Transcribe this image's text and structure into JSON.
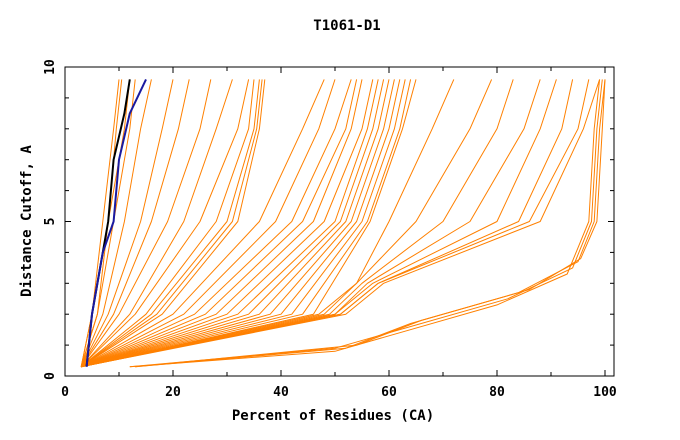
{
  "chart_data": {
    "type": "line",
    "title": "T1061-D1",
    "xlabel": "Percent of Residues (CA)",
    "ylabel": "Distance Cutoff, A",
    "xlim": [
      0,
      100
    ],
    "ylim": [
      0,
      10
    ],
    "xticks": [
      "0",
      "20",
      "40",
      "60",
      "80",
      "100"
    ],
    "yticks": [
      "0",
      "5",
      "10"
    ],
    "grid": false,
    "legend": "none",
    "colors": {
      "models": "#ff8000",
      "highlight_black": "#000000",
      "highlight_blue": "#1a1aa0"
    },
    "series": [
      {
        "color": "models",
        "points": [
          [
            3,
            0.3
          ],
          [
            5,
            2
          ],
          [
            7,
            5
          ],
          [
            9,
            8
          ],
          [
            10,
            9.6
          ]
        ]
      },
      {
        "color": "models",
        "points": [
          [
            3,
            0.3
          ],
          [
            6,
            2
          ],
          [
            8,
            5
          ],
          [
            9.5,
            8
          ],
          [
            10.5,
            9.6
          ]
        ]
      },
      {
        "color": "models",
        "points": [
          [
            3,
            0.3
          ],
          [
            5,
            2
          ],
          [
            8,
            5
          ],
          [
            11,
            8
          ],
          [
            12,
            9.6
          ]
        ]
      },
      {
        "color": "models",
        "points": [
          [
            3,
            0.3
          ],
          [
            6,
            2
          ],
          [
            9,
            5
          ],
          [
            12,
            8
          ],
          [
            13,
            9.6
          ]
        ]
      },
      {
        "color": "models",
        "points": [
          [
            3,
            0.3
          ],
          [
            7,
            2
          ],
          [
            11,
            5
          ],
          [
            14,
            8
          ],
          [
            16,
            9.6
          ]
        ]
      },
      {
        "color": "models",
        "points": [
          [
            3,
            0.3
          ],
          [
            8,
            2
          ],
          [
            14,
            5
          ],
          [
            18,
            8
          ],
          [
            20,
            9.6
          ]
        ]
      },
      {
        "color": "models",
        "points": [
          [
            3,
            0.3
          ],
          [
            9,
            2
          ],
          [
            16,
            5
          ],
          [
            21,
            8
          ],
          [
            23,
            9.6
          ]
        ]
      },
      {
        "color": "models",
        "points": [
          [
            3,
            0.3
          ],
          [
            10,
            2
          ],
          [
            19,
            5
          ],
          [
            25,
            8
          ],
          [
            27,
            9.6
          ]
        ]
      },
      {
        "color": "models",
        "points": [
          [
            3,
            0.3
          ],
          [
            12,
            2
          ],
          [
            22,
            5
          ],
          [
            28,
            8
          ],
          [
            31,
            9.6
          ]
        ]
      },
      {
        "color": "models",
        "points": [
          [
            3,
            0.3
          ],
          [
            13,
            2
          ],
          [
            25,
            5
          ],
          [
            32,
            8
          ],
          [
            34,
            9.6
          ]
        ]
      },
      {
        "color": "models",
        "points": [
          [
            3,
            0.3
          ],
          [
            15,
            2
          ],
          [
            28,
            5
          ],
          [
            34,
            8
          ],
          [
            35,
            9.6
          ]
        ]
      },
      {
        "color": "models",
        "points": [
          [
            3,
            0.3
          ],
          [
            16,
            2
          ],
          [
            30,
            5
          ],
          [
            35,
            8
          ],
          [
            36,
            9.6
          ]
        ]
      },
      {
        "color": "models",
        "points": [
          [
            3,
            0.3
          ],
          [
            17,
            2
          ],
          [
            31,
            5
          ],
          [
            35.5,
            8
          ],
          [
            36.5,
            9.6
          ]
        ]
      },
      {
        "color": "models",
        "points": [
          [
            3,
            0.3
          ],
          [
            18,
            2
          ],
          [
            32,
            5
          ],
          [
            36,
            8
          ],
          [
            37,
            9.6
          ]
        ]
      },
      {
        "color": "models",
        "points": [
          [
            3,
            0.3
          ],
          [
            20,
            2
          ],
          [
            36,
            5
          ],
          [
            44,
            8
          ],
          [
            48,
            9.6
          ]
        ]
      },
      {
        "color": "models",
        "points": [
          [
            3,
            0.3
          ],
          [
            22,
            2
          ],
          [
            39,
            5
          ],
          [
            47,
            8
          ],
          [
            50,
            9.6
          ]
        ]
      },
      {
        "color": "models",
        "points": [
          [
            3,
            0.3
          ],
          [
            24,
            2
          ],
          [
            42,
            5
          ],
          [
            50,
            8
          ],
          [
            53,
            9.6
          ]
        ]
      },
      {
        "color": "models",
        "points": [
          [
            3,
            0.3
          ],
          [
            26,
            2
          ],
          [
            44,
            5
          ],
          [
            52,
            8
          ],
          [
            54,
            9.6
          ]
        ]
      },
      {
        "color": "models",
        "points": [
          [
            3,
            0.3
          ],
          [
            28,
            2
          ],
          [
            46,
            5
          ],
          [
            53,
            8
          ],
          [
            55,
            9.6
          ]
        ]
      },
      {
        "color": "models",
        "points": [
          [
            3,
            0.3
          ],
          [
            30,
            2
          ],
          [
            48,
            5
          ],
          [
            55,
            8
          ],
          [
            57,
            9.6
          ]
        ]
      },
      {
        "color": "models",
        "points": [
          [
            3,
            0.3
          ],
          [
            32,
            2
          ],
          [
            50,
            5
          ],
          [
            56,
            8
          ],
          [
            58,
            9.6
          ]
        ]
      },
      {
        "color": "models",
        "points": [
          [
            3,
            0.3
          ],
          [
            34,
            2
          ],
          [
            51,
            5
          ],
          [
            57,
            8
          ],
          [
            59,
            9.6
          ]
        ]
      },
      {
        "color": "models",
        "points": [
          [
            3,
            0.3
          ],
          [
            36,
            2
          ],
          [
            52,
            5
          ],
          [
            58,
            8
          ],
          [
            60,
            9.6
          ]
        ]
      },
      {
        "color": "models",
        "points": [
          [
            3,
            0.3
          ],
          [
            38,
            2
          ],
          [
            53,
            5
          ],
          [
            59,
            8
          ],
          [
            61,
            9.6
          ]
        ]
      },
      {
        "color": "models",
        "points": [
          [
            3,
            0.3
          ],
          [
            40,
            2
          ],
          [
            54,
            5
          ],
          [
            60,
            8
          ],
          [
            62,
            9.6
          ]
        ]
      },
      {
        "color": "models",
        "points": [
          [
            3,
            0.3
          ],
          [
            42,
            2
          ],
          [
            55,
            5
          ],
          [
            61,
            8
          ],
          [
            63,
            9.6
          ]
        ]
      },
      {
        "color": "models",
        "points": [
          [
            3,
            0.3
          ],
          [
            44,
            2
          ],
          [
            56,
            5
          ],
          [
            62,
            8
          ],
          [
            64,
            9.6
          ]
        ]
      },
      {
        "color": "models",
        "points": [
          [
            3,
            0.3
          ],
          [
            46,
            2
          ],
          [
            56.5,
            5
          ],
          [
            62.5,
            8
          ],
          [
            65,
            9.6
          ]
        ]
      },
      {
        "color": "models",
        "points": [
          [
            3,
            0.3
          ],
          [
            47,
            2
          ],
          [
            54,
            3
          ],
          [
            60,
            5
          ],
          [
            68,
            8
          ],
          [
            72,
            9.6
          ]
        ]
      },
      {
        "color": "models",
        "points": [
          [
            3,
            0.3
          ],
          [
            48,
            2
          ],
          [
            54,
            3
          ],
          [
            65,
            5
          ],
          [
            75,
            8
          ],
          [
            79,
            9.6
          ]
        ]
      },
      {
        "color": "models",
        "points": [
          [
            3,
            0.3
          ],
          [
            49,
            2
          ],
          [
            55,
            3
          ],
          [
            70,
            5
          ],
          [
            80,
            8
          ],
          [
            83,
            9.6
          ]
        ]
      },
      {
        "color": "models",
        "points": [
          [
            3,
            0.3
          ],
          [
            50,
            2
          ],
          [
            56,
            3
          ],
          [
            75,
            5
          ],
          [
            85,
            8
          ],
          [
            88,
            9.6
          ]
        ]
      },
      {
        "color": "models",
        "points": [
          [
            3,
            0.3
          ],
          [
            50,
            2
          ],
          [
            57,
            3
          ],
          [
            80,
            5
          ],
          [
            88,
            8
          ],
          [
            91,
            9.6
          ]
        ]
      },
      {
        "color": "models",
        "points": [
          [
            3,
            0.3
          ],
          [
            51,
            2
          ],
          [
            58,
            3
          ],
          [
            84,
            5
          ],
          [
            92,
            8
          ],
          [
            94,
            9.6
          ]
        ]
      },
      {
        "color": "models",
        "points": [
          [
            3,
            0.3
          ],
          [
            51,
            2
          ],
          [
            58,
            3
          ],
          [
            86,
            5
          ],
          [
            95,
            8
          ],
          [
            97,
            9.6
          ]
        ]
      },
      {
        "color": "models",
        "points": [
          [
            3,
            0.3
          ],
          [
            52,
            2
          ],
          [
            59,
            3
          ],
          [
            88,
            5
          ],
          [
            96,
            8
          ],
          [
            99,
            9.6
          ]
        ]
      },
      {
        "color": "models",
        "points": [
          [
            12,
            0.3
          ],
          [
            50,
            0.8
          ],
          [
            60,
            1.3
          ],
          [
            80,
            2.3
          ],
          [
            93,
            3.3
          ],
          [
            97,
            5
          ],
          [
            98,
            8
          ],
          [
            99,
            9.6
          ]
        ]
      },
      {
        "color": "models",
        "points": [
          [
            12,
            0.3
          ],
          [
            50,
            0.9
          ],
          [
            62,
            1.5
          ],
          [
            82,
            2.5
          ],
          [
            94,
            3.5
          ],
          [
            97.5,
            5
          ],
          [
            98.5,
            8
          ],
          [
            99.5,
            9.6
          ]
        ]
      },
      {
        "color": "models",
        "points": [
          [
            13,
            0.3
          ],
          [
            52,
            0.9
          ],
          [
            64,
            1.7
          ],
          [
            84,
            2.7
          ],
          [
            95,
            3.7
          ],
          [
            98,
            5
          ],
          [
            99,
            8
          ],
          [
            100,
            9.6
          ]
        ]
      },
      {
        "color": "models",
        "points": [
          [
            13,
            0.3
          ],
          [
            54,
            1
          ],
          [
            66,
            1.8
          ],
          [
            86,
            2.8
          ],
          [
            95.5,
            3.8
          ],
          [
            98.5,
            5
          ],
          [
            99.5,
            8
          ],
          [
            100,
            9.6
          ]
        ]
      },
      {
        "color": "highlight_black",
        "points": [
          [
            4,
            0.3
          ],
          [
            5,
            2
          ],
          [
            7,
            4
          ],
          [
            8,
            5
          ],
          [
            9,
            7
          ],
          [
            11,
            8.5
          ],
          [
            12,
            9.6
          ]
        ]
      },
      {
        "color": "highlight_blue",
        "points": [
          [
            4,
            0.3
          ],
          [
            5,
            2
          ],
          [
            7,
            4
          ],
          [
            9,
            5
          ],
          [
            10,
            7
          ],
          [
            12,
            8.5
          ],
          [
            15,
            9.6
          ]
        ]
      }
    ]
  }
}
